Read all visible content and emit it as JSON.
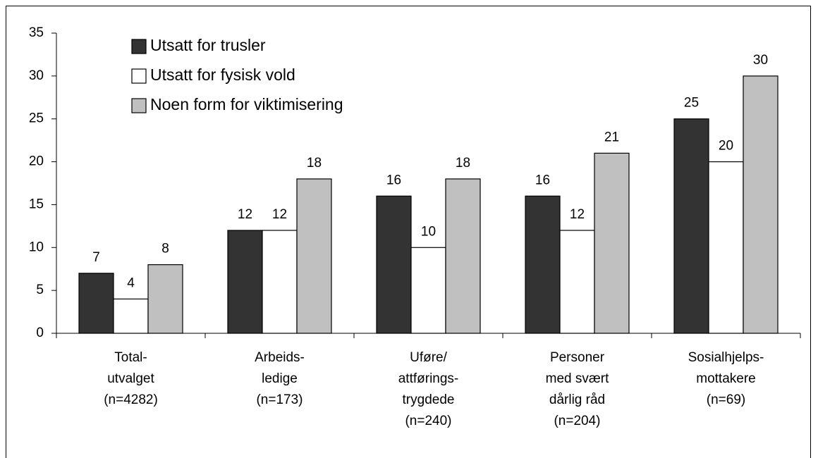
{
  "chart_data": {
    "type": "bar",
    "categories": [
      [
        "Total-",
        "utvalget",
        "(n=4282)"
      ],
      [
        "Arbeids-",
        "ledige",
        "(n=173)"
      ],
      [
        "Uføre/",
        "attførings-",
        "trygdede",
        "(n=240)"
      ],
      [
        "Personer",
        "med svært",
        "dårlig råd",
        "(n=204)"
      ],
      [
        "Sosialhjelps-",
        "mottakere",
        "(n=69)"
      ]
    ],
    "series": [
      {
        "name": "Utsatt for trusler",
        "color": "#333333",
        "values": [
          7,
          12,
          16,
          16,
          25
        ]
      },
      {
        "name": "Utsatt for fysisk vold",
        "color": "#ffffff",
        "values": [
          4,
          12,
          10,
          12,
          20
        ]
      },
      {
        "name": "Noen form for viktimisering",
        "color": "#c0c0c0",
        "values": [
          8,
          18,
          18,
          21,
          30
        ]
      }
    ],
    "ylim": [
      0,
      35
    ],
    "yticks": [
      0,
      5,
      10,
      15,
      20,
      25,
      30,
      35
    ],
    "grid": false,
    "legend": "top-left"
  }
}
